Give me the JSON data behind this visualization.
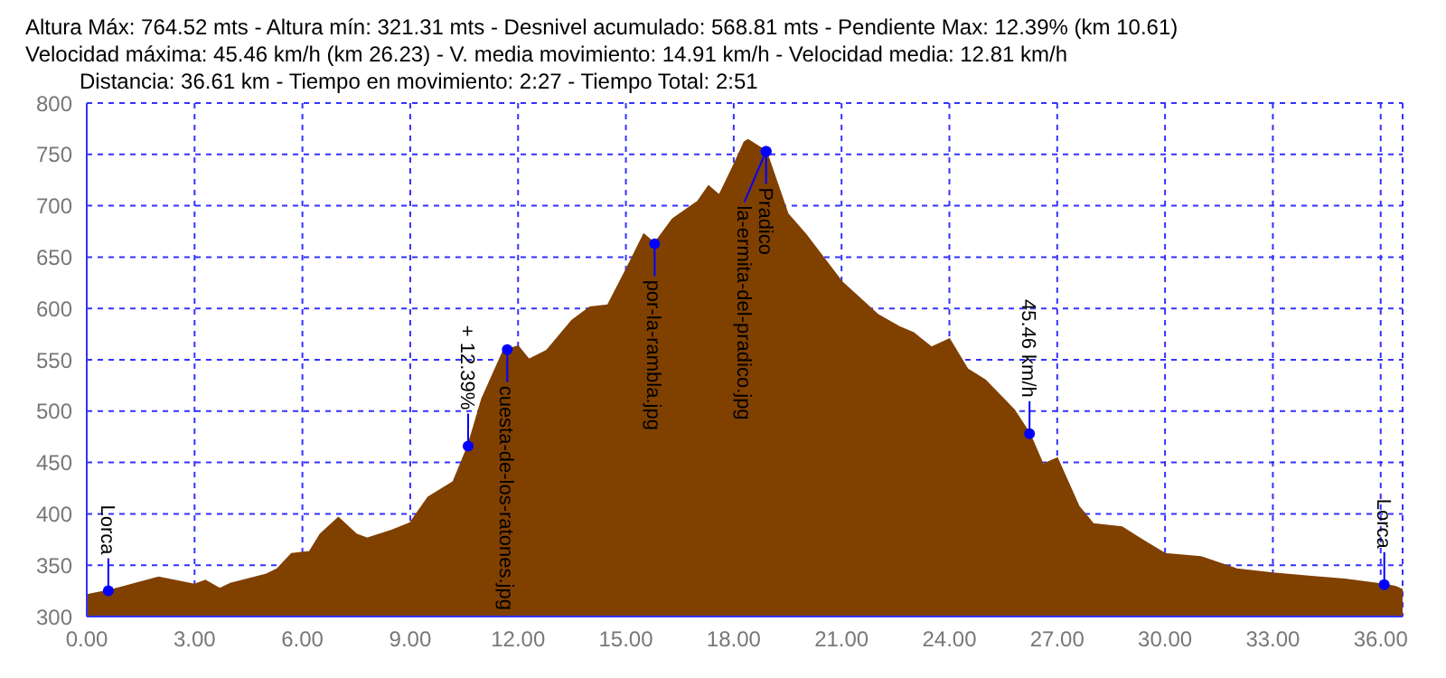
{
  "chart_data": {
    "type": "area",
    "title": "Altura Máx: 764.52 mts - Altura mín: 321.31 mts - Desnivel acumulado: 568.81 mts - Pendiente Max: 12.39% (km 10.61)",
    "subtitle": "Velocidad máxima: 45.46 km/h (km 26.23) - V. media movimiento: 14.91 km/h - Velocidad media: 12.81 km/h",
    "annotations": [
      "Distancia: 36.61 km - Tiempo en movimiento: 2:27 - Tiempo Total: 2:51",
      {
        "text": "Lorca",
        "x": 0.6,
        "y": 325
      },
      {
        "text": "+ 12.39%",
        "x": 10.61,
        "y": 466
      },
      {
        "text": "cuesta-de-los-ratones.jpg",
        "x": 11.7,
        "y": 560
      },
      {
        "text": "por-la-rambla.jpg",
        "x": 15.8,
        "y": 663
      },
      {
        "text": "Pradico",
        "x": 18.9,
        "y": 753
      },
      {
        "text": "la-ermita-del-pradico.jpg",
        "x": 18.9,
        "y": 753
      },
      {
        "text": "45.46 km/h",
        "x": 26.23,
        "y": 478
      },
      {
        "text": "Lorca",
        "x": 36.1,
        "y": 331
      }
    ],
    "x": [
      0,
      0.6,
      2,
      3,
      3.3,
      3.7,
      4,
      5,
      5.3,
      5.7,
      6.2,
      6.5,
      7,
      7.5,
      7.8,
      8.5,
      9,
      9.5,
      10.2,
      10.61,
      11,
      11.6,
      12,
      12.3,
      12.8,
      13.5,
      14,
      14.5,
      15,
      15.5,
      15.8,
      16.3,
      17,
      17.3,
      17.6,
      18,
      18.3,
      18.4,
      18.9,
      19.5,
      20,
      21,
      22,
      22.6,
      23,
      23.5,
      24,
      24.5,
      25,
      25.8,
      26.23,
      26.6,
      27,
      27.6,
      28,
      28.8,
      29.2,
      30,
      31,
      32,
      33,
      34,
      35,
      36.1,
      36.4,
      36.61
    ],
    "values": [
      321,
      325,
      338,
      331,
      335,
      327,
      332,
      341,
      346,
      361,
      363,
      380,
      396,
      380,
      376,
      384,
      391,
      416,
      431,
      466,
      512,
      559,
      563,
      550,
      559,
      588,
      601,
      603,
      637,
      672,
      663,
      687,
      704,
      719,
      710,
      739,
      762,
      764,
      753,
      692,
      672,
      626,
      594,
      582,
      576,
      562,
      570,
      541,
      530,
      501,
      478,
      448,
      454,
      407,
      390,
      387,
      378,
      361,
      358,
      346,
      342,
      339,
      336,
      331,
      329,
      326
    ],
    "color": "#804000",
    "xlim": [
      0,
      36.61
    ],
    "xticks": [
      {
        "value": 0,
        "label": "0.00"
      },
      {
        "value": 3,
        "label": "3.00"
      },
      {
        "value": 6,
        "label": "6.00"
      },
      {
        "value": 9,
        "label": "9.00"
      },
      {
        "value": 12,
        "label": "12.00"
      },
      {
        "value": 15,
        "label": "15.00"
      },
      {
        "value": 18,
        "label": "18.00"
      },
      {
        "value": 21,
        "label": "21.00"
      },
      {
        "value": 24,
        "label": "24.00"
      },
      {
        "value": 27,
        "label": "27.00"
      },
      {
        "value": 30,
        "label": "30.00"
      },
      {
        "value": 33,
        "label": "33.00"
      },
      {
        "value": 36,
        "label": "36.00"
      }
    ],
    "ylim": [
      300,
      800
    ],
    "yticks": [
      300,
      350,
      400,
      450,
      500,
      550,
      600,
      650,
      700,
      750,
      800
    ],
    "grid": true
  }
}
